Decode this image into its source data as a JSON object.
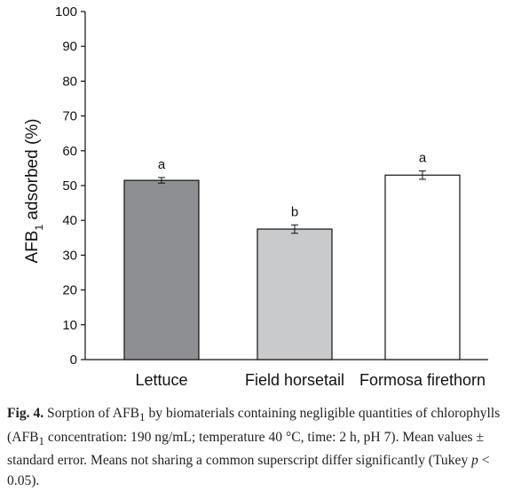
{
  "chart_data": {
    "type": "bar",
    "categories": [
      "Lettuce",
      "Field horsetail",
      "Formosa firethorn"
    ],
    "values": [
      51.5,
      37.5,
      53.0
    ],
    "errors": [
      0.8,
      1.2,
      1.2
    ],
    "significance_letters": [
      "a",
      "b",
      "a"
    ],
    "bar_colors": [
      "#8e8f93",
      "#c9cacc",
      "#ffffff"
    ],
    "ylabel_main": "AFB",
    "ylabel_sub": "1",
    "ylabel_rest": " adsorbed (%)",
    "xlabel": "",
    "ylim": [
      0,
      100
    ],
    "yticks": [
      0,
      10,
      20,
      30,
      40,
      50,
      60,
      70,
      80,
      90,
      100
    ],
    "grid": false
  },
  "caption": {
    "label": "Fig. 4.",
    "text_1": " Sorption of AFB",
    "text_1_sub": "1",
    "text_2": " by biomaterials containing negligible quantities of chlorophylls (AFB",
    "text_2_sub": "1",
    "text_3": " concentration: 190 ng/mL; temperature 40 °C, time: 2 h, pH 7). Mean values ± standard error. Means not sharing a common superscript differ significantly (Tukey ",
    "text_italic": "p",
    "text_4": " < 0.05)."
  }
}
